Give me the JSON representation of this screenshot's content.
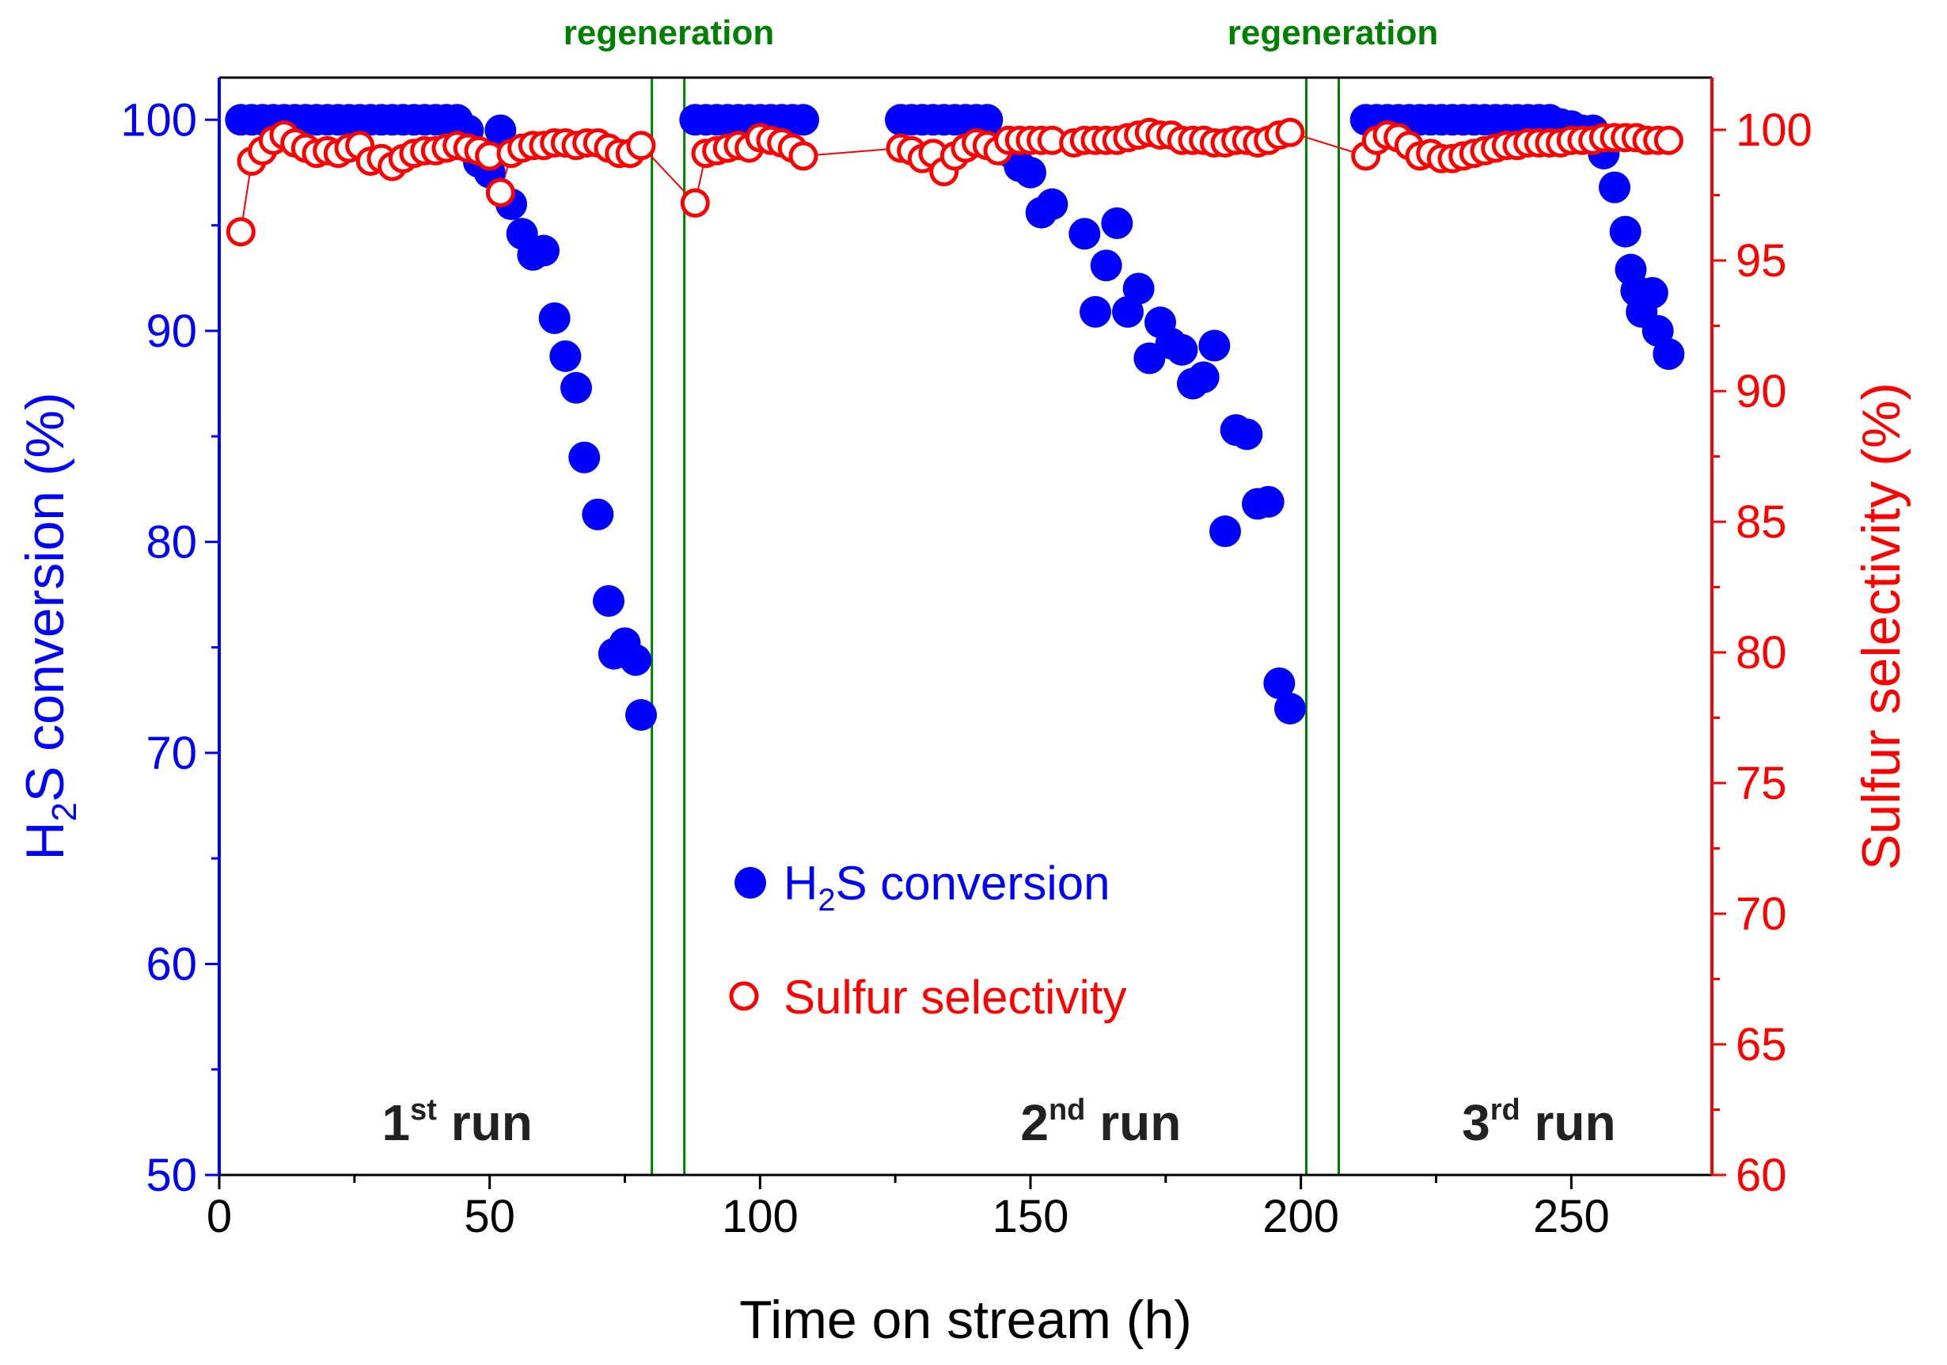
{
  "chart_data": {
    "type": "scatter",
    "xlabel": "Time on stream (h)",
    "ylabel_left": {
      "main": "H",
      "sub": "2",
      "rest": "S conversion (%)"
    },
    "ylabel_right": "Sulfur selectivity (%)",
    "xlim": [
      0,
      276
    ],
    "ylim_left": [
      50,
      102
    ],
    "ylim_right": [
      60,
      102
    ],
    "x_ticks": [
      0,
      50,
      100,
      150,
      200,
      250
    ],
    "y_ticks_left": [
      50,
      60,
      70,
      80,
      90,
      100
    ],
    "y_ticks_right": [
      60,
      65,
      70,
      75,
      80,
      85,
      90,
      95,
      100
    ],
    "colors": {
      "conversion": "#0000ff",
      "selectivity": "#ff0000",
      "regeneration": "#008000",
      "text": "#222222"
    },
    "regeneration_label": "regeneration",
    "regeneration_windows": [
      [
        80,
        86
      ],
      [
        201,
        207
      ]
    ],
    "run_labels": [
      {
        "num": "1",
        "sup": "st",
        "word": " run",
        "x": 44
      },
      {
        "num": "2",
        "sup": "nd",
        "word": " run",
        "x": 163
      },
      {
        "num": "3",
        "sup": "rd",
        "word": " run",
        "x": 244
      }
    ],
    "legend": {
      "conversion": {
        "main": "H",
        "sub": "2",
        "rest": "S conversion"
      },
      "selectivity": "Sulfur selectivity"
    },
    "series": [
      {
        "name": "H2S conversion",
        "axis": "left",
        "marker": "filled-circle",
        "points": [
          [
            4,
            100
          ],
          [
            6,
            100
          ],
          [
            8,
            100
          ],
          [
            10,
            100
          ],
          [
            12,
            100
          ],
          [
            14,
            100
          ],
          [
            16,
            100
          ],
          [
            18,
            100
          ],
          [
            20,
            100
          ],
          [
            22,
            100
          ],
          [
            24,
            100
          ],
          [
            26,
            100
          ],
          [
            28,
            100
          ],
          [
            30,
            100
          ],
          [
            32,
            100
          ],
          [
            34,
            100
          ],
          [
            36,
            100
          ],
          [
            38,
            100
          ],
          [
            40,
            100
          ],
          [
            42,
            100
          ],
          [
            44,
            100
          ],
          [
            46,
            99.5
          ],
          [
            48,
            98
          ],
          [
            50,
            97.5
          ],
          [
            52,
            99.5
          ],
          [
            54,
            96
          ],
          [
            56,
            94.6
          ],
          [
            58,
            93.6
          ],
          [
            60,
            93.8
          ],
          [
            62,
            90.6
          ],
          [
            64,
            88.8
          ],
          [
            66,
            87.3
          ],
          [
            67.5,
            84
          ],
          [
            70,
            81.3
          ],
          [
            72,
            77.2
          ],
          [
            73,
            74.7
          ],
          [
            75,
            75.2
          ],
          [
            77,
            74.4
          ],
          [
            78,
            71.8
          ],
          [
            88,
            100
          ],
          [
            90,
            100
          ],
          [
            92,
            100
          ],
          [
            94,
            100
          ],
          [
            96,
            100
          ],
          [
            98,
            100
          ],
          [
            100,
            100
          ],
          [
            102,
            100
          ],
          [
            104,
            100
          ],
          [
            106,
            100
          ],
          [
            108,
            100
          ],
          [
            126,
            100
          ],
          [
            128,
            100
          ],
          [
            130,
            100
          ],
          [
            132,
            100
          ],
          [
            134,
            100
          ],
          [
            136,
            100
          ],
          [
            138,
            100
          ],
          [
            140,
            100
          ],
          [
            142,
            100
          ],
          [
            144,
            98.8
          ],
          [
            146,
            98.5
          ],
          [
            148,
            97.8
          ],
          [
            150,
            97.5
          ],
          [
            152,
            95.6
          ],
          [
            154,
            96
          ],
          [
            160,
            94.6
          ],
          [
            162,
            90.9
          ],
          [
            164,
            93.1
          ],
          [
            166,
            95.1
          ],
          [
            168,
            90.9
          ],
          [
            170,
            92
          ],
          [
            172,
            88.7
          ],
          [
            174,
            90.4
          ],
          [
            176,
            89.4
          ],
          [
            178,
            89.1
          ],
          [
            180,
            87.5
          ],
          [
            182,
            87.8
          ],
          [
            184,
            89.3
          ],
          [
            186,
            80.5
          ],
          [
            188,
            85.3
          ],
          [
            190,
            85.1
          ],
          [
            192,
            81.8
          ],
          [
            194,
            81.9
          ],
          [
            196,
            73.3
          ],
          [
            198,
            72.1
          ],
          [
            212,
            100
          ],
          [
            214,
            100
          ],
          [
            216,
            100
          ],
          [
            218,
            100
          ],
          [
            220,
            100
          ],
          [
            222,
            100
          ],
          [
            224,
            100
          ],
          [
            226,
            100
          ],
          [
            228,
            100
          ],
          [
            230,
            100
          ],
          [
            232,
            100
          ],
          [
            234,
            100
          ],
          [
            236,
            100
          ],
          [
            238,
            100
          ],
          [
            240,
            100
          ],
          [
            242,
            100
          ],
          [
            244,
            100
          ],
          [
            246,
            100
          ],
          [
            248,
            99.8
          ],
          [
            250,
            99.7
          ],
          [
            252,
            99.5
          ],
          [
            254,
            99.5
          ],
          [
            256,
            98.4
          ],
          [
            258,
            96.8
          ],
          [
            260,
            94.7
          ],
          [
            261,
            92.9
          ],
          [
            262,
            91.9
          ],
          [
            263,
            90.9
          ],
          [
            265,
            91.8
          ],
          [
            266,
            90
          ],
          [
            268,
            88.9
          ]
        ]
      },
      {
        "name": "Sulfur selectivity",
        "axis": "right",
        "marker": "open-circle",
        "points": [
          [
            4,
            96.1
          ],
          [
            6,
            98.8
          ],
          [
            8,
            99.2
          ],
          [
            10,
            99.6
          ],
          [
            12,
            99.8
          ],
          [
            14,
            99.5
          ],
          [
            16,
            99.3
          ],
          [
            18,
            99.1
          ],
          [
            20,
            99.2
          ],
          [
            22,
            99.1
          ],
          [
            24,
            99.3
          ],
          [
            26,
            99.4
          ],
          [
            28,
            98.8
          ],
          [
            30,
            98.9
          ],
          [
            32,
            98.6
          ],
          [
            34,
            98.9
          ],
          [
            36,
            99.1
          ],
          [
            38,
            99.2
          ],
          [
            40,
            99.2
          ],
          [
            42,
            99.3
          ],
          [
            44,
            99.4
          ],
          [
            46,
            99.3
          ],
          [
            48,
            99.2
          ],
          [
            50,
            99
          ],
          [
            52,
            97.6
          ],
          [
            54,
            99.1
          ],
          [
            56,
            99.3
          ],
          [
            58,
            99.4
          ],
          [
            60,
            99.4
          ],
          [
            62,
            99.5
          ],
          [
            64,
            99.5
          ],
          [
            66,
            99.4
          ],
          [
            68,
            99.5
          ],
          [
            70,
            99.5
          ],
          [
            72,
            99.3
          ],
          [
            74,
            99.1
          ],
          [
            76,
            99.1
          ],
          [
            78,
            99.4
          ],
          [
            88,
            97.2
          ],
          [
            90,
            99.1
          ],
          [
            92,
            99.2
          ],
          [
            94,
            99.3
          ],
          [
            96,
            99.4
          ],
          [
            98,
            99.3
          ],
          [
            100,
            99.7
          ],
          [
            102,
            99.6
          ],
          [
            104,
            99.5
          ],
          [
            106,
            99.3
          ],
          [
            108,
            99.0
          ],
          [
            126,
            99.3
          ],
          [
            128,
            99.2
          ],
          [
            130,
            98.9
          ],
          [
            132,
            99.1
          ],
          [
            134,
            98.4
          ],
          [
            136,
            99.0
          ],
          [
            138,
            99.3
          ],
          [
            140,
            99.5
          ],
          [
            142,
            99.4
          ],
          [
            144,
            99.2
          ],
          [
            146,
            99.6
          ],
          [
            148,
            99.6
          ],
          [
            150,
            99.6
          ],
          [
            152,
            99.6
          ],
          [
            154,
            99.6
          ],
          [
            158,
            99.5
          ],
          [
            160,
            99.6
          ],
          [
            162,
            99.6
          ],
          [
            164,
            99.6
          ],
          [
            166,
            99.6
          ],
          [
            168,
            99.7
          ],
          [
            170,
            99.8
          ],
          [
            172,
            99.9
          ],
          [
            174,
            99.8
          ],
          [
            176,
            99.8
          ],
          [
            178,
            99.6
          ],
          [
            180,
            99.6
          ],
          [
            182,
            99.6
          ],
          [
            184,
            99.5
          ],
          [
            186,
            99.5
          ],
          [
            188,
            99.6
          ],
          [
            190,
            99.6
          ],
          [
            192,
            99.5
          ],
          [
            194,
            99.6
          ],
          [
            196,
            99.8
          ],
          [
            198,
            99.9
          ],
          [
            212,
            99.0
          ],
          [
            214,
            99.6
          ],
          [
            216,
            99.8
          ],
          [
            218,
            99.7
          ],
          [
            220,
            99.4
          ],
          [
            222,
            99.0
          ],
          [
            224,
            99.1
          ],
          [
            226,
            98.9
          ],
          [
            228,
            98.9
          ],
          [
            230,
            99.0
          ],
          [
            232,
            99.1
          ],
          [
            234,
            99.2
          ],
          [
            236,
            99.3
          ],
          [
            238,
            99.4
          ],
          [
            240,
            99.4
          ],
          [
            242,
            99.5
          ],
          [
            244,
            99.5
          ],
          [
            246,
            99.5
          ],
          [
            248,
            99.5
          ],
          [
            250,
            99.6
          ],
          [
            252,
            99.6
          ],
          [
            254,
            99.6
          ],
          [
            256,
            99.7
          ],
          [
            258,
            99.7
          ],
          [
            260,
            99.7
          ],
          [
            262,
            99.7
          ],
          [
            264,
            99.6
          ],
          [
            266,
            99.6
          ],
          [
            268,
            99.6
          ]
        ]
      }
    ]
  }
}
